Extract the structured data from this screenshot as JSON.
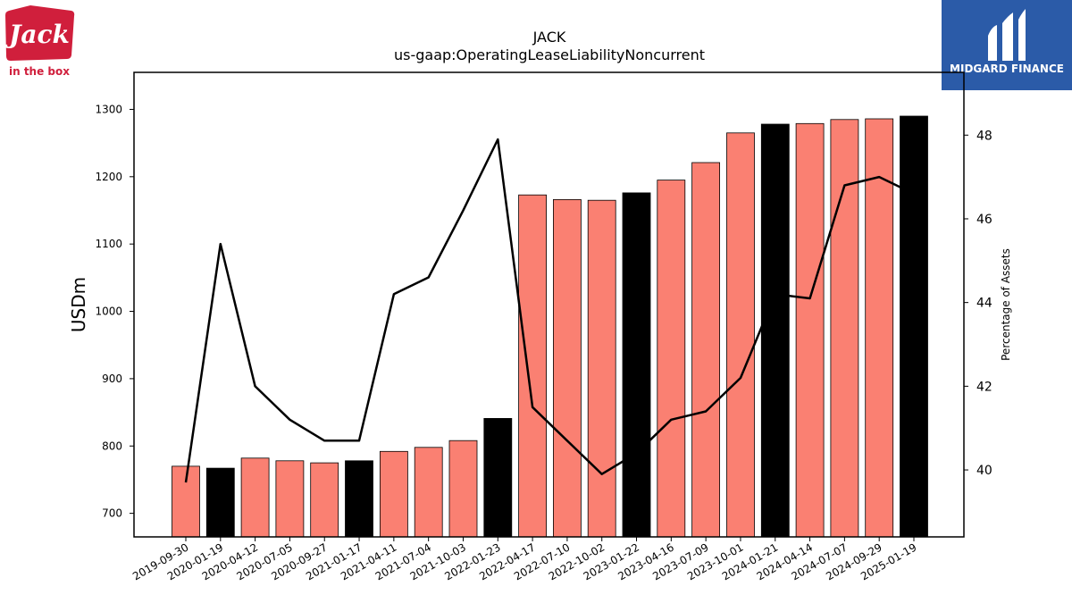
{
  "logos": {
    "left": "in the box",
    "left_mark": "Jack",
    "right": "MIDGARD FINANCE"
  },
  "colors": {
    "bar_default": "#fa8072",
    "bar_highlight": "#000000",
    "line": "#000000",
    "right_logo_bg": "#2b5ba8",
    "left_logo_red": "#d01f3c"
  },
  "chart_data": {
    "type": "bar",
    "title": "JACK",
    "subtitle": "us-gaap:OperatingLeaseLiabilityNoncurrent",
    "ylabel": "USDm",
    "ylabel_right": "Percentage of Assets",
    "xlabel": "",
    "ylim": [
      665,
      1355
    ],
    "ylim_right": [
      38.4,
      49.5
    ],
    "yticks": [
      700,
      800,
      900,
      1000,
      1100,
      1200,
      1300
    ],
    "yticks_right": [
      40,
      42,
      44,
      46,
      48
    ],
    "grid": false,
    "categories": [
      "2019-09-30",
      "2020-01-19",
      "2020-04-12",
      "2020-07-05",
      "2020-09-27",
      "2021-01-17",
      "2021-04-11",
      "2021-07-04",
      "2021-10-03",
      "2022-01-23",
      "2022-04-17",
      "2022-07-10",
      "2022-10-02",
      "2023-01-22",
      "2023-04-16",
      "2023-07-09",
      "2023-10-01",
      "2024-01-21",
      "2024-04-14",
      "2024-07-07",
      "2024-09-29",
      "2025-01-19"
    ],
    "highlight_categories": [
      "2020-01-19",
      "2021-01-17",
      "2022-01-23",
      "2023-01-22",
      "2024-01-21",
      "2025-01-19"
    ],
    "series": [
      {
        "type": "bar",
        "axis": "left",
        "values": [
          770,
          767,
          782,
          778,
          775,
          778,
          792,
          798,
          808,
          841,
          1173,
          1166,
          1165,
          1176,
          1195,
          1221,
          1265,
          1278,
          1279,
          1285,
          1286,
          1290
        ]
      },
      {
        "type": "line",
        "axis": "right",
        "values": [
          39.7,
          45.4,
          42.0,
          41.2,
          40.7,
          40.7,
          44.2,
          44.6,
          46.2,
          47.9,
          41.5,
          40.7,
          39.9,
          40.4,
          41.2,
          41.4,
          42.2,
          44.2,
          44.1,
          46.8,
          47.0,
          46.6
        ]
      }
    ]
  }
}
